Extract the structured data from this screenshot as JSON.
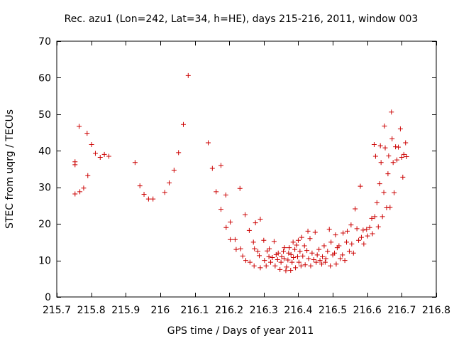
{
  "chart_data": {
    "type": "scatter",
    "title": "Rec. azu1 (Lon=242, Lat=34, h=HE), days 215-216, 2011, window 003",
    "xlabel": "GPS time / Days of year 2011",
    "ylabel": "STEC from uqrg / TECUs",
    "xlim": [
      215.7,
      216.8
    ],
    "ylim": [
      0,
      70
    ],
    "x_ticks": [
      "215.7",
      "215.8",
      "215.9",
      "216",
      "216.1",
      "216.2",
      "216.3",
      "216.4",
      "216.5",
      "216.6",
      "216.7",
      "216.8"
    ],
    "y_ticks": [
      "0",
      "10",
      "20",
      "30",
      "40",
      "50",
      "60",
      "70"
    ],
    "marker": "+",
    "color": "#cc0000",
    "grid": false,
    "points": [
      [
        215.753,
        37.0
      ],
      [
        215.753,
        36.2
      ],
      [
        215.753,
        28.2
      ],
      [
        215.765,
        46.7
      ],
      [
        215.767,
        28.8
      ],
      [
        215.778,
        29.8
      ],
      [
        215.788,
        44.8
      ],
      [
        215.79,
        33.2
      ],
      [
        215.801,
        41.7
      ],
      [
        215.812,
        39.3
      ],
      [
        215.826,
        38.2
      ],
      [
        215.838,
        39.0
      ],
      [
        215.851,
        38.5
      ],
      [
        215.927,
        36.8
      ],
      [
        215.941,
        30.4
      ],
      [
        215.953,
        28.1
      ],
      [
        215.966,
        26.8
      ],
      [
        215.979,
        26.8
      ],
      [
        216.013,
        28.6
      ],
      [
        216.026,
        31.2
      ],
      [
        216.04,
        34.7
      ],
      [
        216.053,
        39.5
      ],
      [
        216.067,
        47.2
      ],
      [
        216.081,
        60.6
      ],
      [
        216.139,
        42.2
      ],
      [
        216.151,
        35.2
      ],
      [
        216.162,
        28.8
      ],
      [
        216.176,
        36.0
      ],
      [
        216.176,
        24.0
      ],
      [
        216.19,
        27.9
      ],
      [
        216.191,
        19.0
      ],
      [
        216.203,
        20.5
      ],
      [
        216.203,
        15.7
      ],
      [
        216.217,
        15.7
      ],
      [
        216.22,
        13.0
      ],
      [
        216.231,
        29.7
      ],
      [
        216.233,
        13.2
      ],
      [
        216.239,
        11.2
      ],
      [
        216.246,
        22.5
      ],
      [
        216.248,
        10.0
      ],
      [
        216.258,
        18.2
      ],
      [
        216.26,
        9.5
      ],
      [
        216.27,
        15.0
      ],
      [
        216.272,
        8.5
      ],
      [
        216.273,
        13.2
      ],
      [
        216.276,
        20.3
      ],
      [
        216.283,
        12.5
      ],
      [
        216.287,
        11.3
      ],
      [
        216.29,
        8.0
      ],
      [
        216.29,
        21.3
      ],
      [
        216.3,
        15.5
      ],
      [
        216.302,
        10.0
      ],
      [
        216.307,
        8.5
      ],
      [
        216.31,
        12.6
      ],
      [
        216.315,
        11.0
      ],
      [
        216.316,
        13.2
      ],
      [
        216.32,
        9.5
      ],
      [
        216.325,
        10.8
      ],
      [
        216.33,
        15.2
      ],
      [
        216.333,
        8.5
      ],
      [
        216.336,
        11.6
      ],
      [
        216.34,
        10.2
      ],
      [
        216.342,
        12.0
      ],
      [
        216.347,
        7.5
      ],
      [
        216.35,
        9.5
      ],
      [
        216.352,
        11.0
      ],
      [
        216.357,
        12.5
      ],
      [
        216.359,
        10.5
      ],
      [
        216.36,
        13.5
      ],
      [
        216.364,
        7.2
      ],
      [
        216.366,
        8.2
      ],
      [
        216.37,
        10.1
      ],
      [
        216.372,
        12.0
      ],
      [
        216.374,
        13.5
      ],
      [
        216.378,
        7.3
      ],
      [
        216.379,
        11.6
      ],
      [
        216.382,
        9.5
      ],
      [
        216.385,
        15.0
      ],
      [
        216.386,
        10.8
      ],
      [
        216.39,
        13.0
      ],
      [
        216.392,
        8.0
      ],
      [
        216.395,
        14.2
      ],
      [
        216.398,
        11.0
      ],
      [
        216.4,
        15.5
      ],
      [
        216.402,
        9.5
      ],
      [
        216.405,
        12.5
      ],
      [
        216.408,
        8.5
      ],
      [
        216.41,
        16.3
      ],
      [
        216.413,
        11.2
      ],
      [
        216.418,
        14.0
      ],
      [
        216.42,
        8.8
      ],
      [
        216.425,
        12.7
      ],
      [
        216.428,
        18.0
      ],
      [
        216.43,
        10.5
      ],
      [
        216.434,
        16.0
      ],
      [
        216.436,
        8.5
      ],
      [
        216.44,
        12.0
      ],
      [
        216.445,
        10.2
      ],
      [
        216.449,
        17.7
      ],
      [
        216.452,
        9.5
      ],
      [
        216.455,
        11.5
      ],
      [
        216.46,
        13.0
      ],
      [
        216.463,
        10.0
      ],
      [
        216.468,
        9.0
      ],
      [
        216.47,
        11.0
      ],
      [
        216.475,
        14.0
      ],
      [
        216.478,
        9.5
      ],
      [
        216.48,
        10.5
      ],
      [
        216.485,
        12.5
      ],
      [
        216.49,
        18.5
      ],
      [
        216.493,
        8.5
      ],
      [
        216.495,
        15.0
      ],
      [
        216.5,
        11.5
      ],
      [
        216.505,
        12.0
      ],
      [
        216.508,
        17.0
      ],
      [
        216.51,
        9.0
      ],
      [
        216.513,
        13.5
      ],
      [
        216.518,
        14.0
      ],
      [
        216.522,
        10.5
      ],
      [
        216.528,
        11.5
      ],
      [
        216.53,
        17.5
      ],
      [
        216.535,
        10.0
      ],
      [
        216.54,
        15.0
      ],
      [
        216.542,
        18.0
      ],
      [
        216.548,
        12.5
      ],
      [
        216.553,
        19.7
      ],
      [
        216.555,
        14.5
      ],
      [
        216.56,
        12.0
      ],
      [
        216.565,
        24.1
      ],
      [
        216.57,
        18.7
      ],
      [
        216.575,
        15.5
      ],
      [
        216.58,
        30.3
      ],
      [
        216.583,
        16.3
      ],
      [
        216.588,
        18.3
      ],
      [
        216.59,
        14.5
      ],
      [
        216.598,
        18.5
      ],
      [
        216.601,
        16.7
      ],
      [
        216.607,
        19.0
      ],
      [
        216.613,
        21.5
      ],
      [
        216.615,
        17.3
      ],
      [
        216.62,
        41.7
      ],
      [
        216.622,
        22.0
      ],
      [
        216.624,
        38.5
      ],
      [
        216.628,
        25.8
      ],
      [
        216.632,
        19.2
      ],
      [
        216.636,
        31.0
      ],
      [
        216.638,
        41.4
      ],
      [
        216.64,
        36.8
      ],
      [
        216.644,
        22.0
      ],
      [
        216.648,
        28.6
      ],
      [
        216.65,
        46.8
      ],
      [
        216.652,
        40.8
      ],
      [
        216.656,
        24.4
      ],
      [
        216.66,
        33.7
      ],
      [
        216.662,
        38.6
      ],
      [
        216.666,
        24.5
      ],
      [
        216.67,
        50.6
      ],
      [
        216.672,
        43.3
      ],
      [
        216.675,
        36.8
      ],
      [
        216.678,
        28.5
      ],
      [
        216.682,
        41.1
      ],
      [
        216.686,
        37.5
      ],
      [
        216.69,
        41.0
      ],
      [
        216.696,
        46.0
      ],
      [
        216.7,
        38.2
      ],
      [
        216.703,
        32.8
      ],
      [
        216.706,
        39.0
      ],
      [
        216.711,
        42.2
      ],
      [
        216.714,
        38.4
      ]
    ]
  }
}
